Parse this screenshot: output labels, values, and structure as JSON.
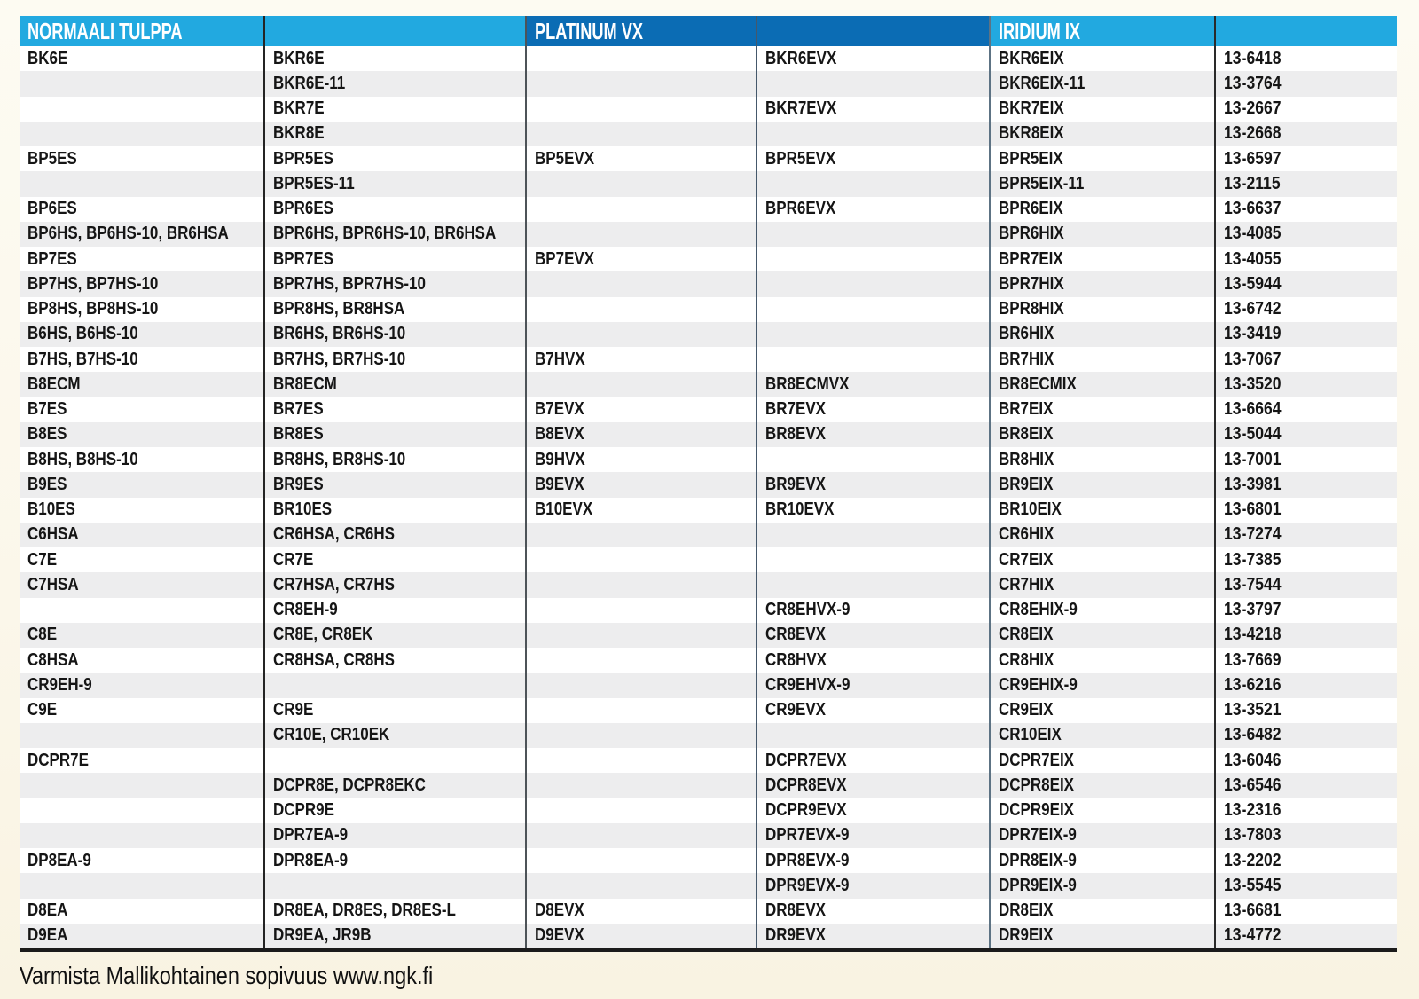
{
  "header": {
    "normaali_label": "NORMAALI TULPPA",
    "platinum_label": "PLATINUM VX",
    "iridium_label": "IRIDIUM IX"
  },
  "footer": {
    "note": "Varmista Mallikohtainen sopivuus www.ngk.fi"
  },
  "colors": {
    "light_blue": "#22A9E0",
    "dark_blue": "#0B6CB4",
    "stripe_gray": "#EDEDEE",
    "page_bg": "#FBF7EA",
    "text": "#151515"
  },
  "table": {
    "columns": [
      "normaali-tulppa-1",
      "normaali-tulppa-2",
      "platinum-vx-1",
      "platinum-vx-2",
      "iridium-ix",
      "part-number"
    ],
    "rows": [
      [
        "BK6E",
        "BKR6E",
        "",
        "BKR6EVX",
        "BKR6EIX",
        "13-6418"
      ],
      [
        "",
        "BKR6E-11",
        "",
        "",
        "BKR6EIX-11",
        "13-3764"
      ],
      [
        "",
        "BKR7E",
        "",
        "BKR7EVX",
        "BKR7EIX",
        "13-2667"
      ],
      [
        "",
        "BKR8E",
        "",
        "",
        "BKR8EIX",
        "13-2668"
      ],
      [
        "BP5ES",
        "BPR5ES",
        "BP5EVX",
        "BPR5EVX",
        "BPR5EIX",
        "13-6597"
      ],
      [
        "",
        "BPR5ES-11",
        "",
        "",
        "BPR5EIX-11",
        "13-2115"
      ],
      [
        "BP6ES",
        "BPR6ES",
        "",
        "BPR6EVX",
        "BPR6EIX",
        "13-6637"
      ],
      [
        "BP6HS, BP6HS-10, BR6HSA",
        "BPR6HS, BPR6HS-10, BR6HSA",
        "",
        "",
        "BPR6HIX",
        "13-4085"
      ],
      [
        "BP7ES",
        "BPR7ES",
        "BP7EVX",
        "",
        "BPR7EIX",
        "13-4055"
      ],
      [
        "BP7HS, BP7HS-10",
        "BPR7HS, BPR7HS-10",
        "",
        "",
        "BPR7HIX",
        "13-5944"
      ],
      [
        "BP8HS, BP8HS-10",
        "BPR8HS, BR8HSA",
        "",
        "",
        "BPR8HIX",
        "13-6742"
      ],
      [
        "B6HS, B6HS-10",
        "BR6HS, BR6HS-10",
        "",
        "",
        "BR6HIX",
        "13-3419"
      ],
      [
        "B7HS, B7HS-10",
        "BR7HS, BR7HS-10",
        "B7HVX",
        "",
        "BR7HIX",
        "13-7067"
      ],
      [
        "B8ECM",
        "BR8ECM",
        "",
        "BR8ECMVX",
        "BR8ECMIX",
        "13-3520"
      ],
      [
        "B7ES",
        "BR7ES",
        "B7EVX",
        "BR7EVX",
        "BR7EIX",
        "13-6664"
      ],
      [
        "B8ES",
        "BR8ES",
        "B8EVX",
        "BR8EVX",
        "BR8EIX",
        "13-5044"
      ],
      [
        "B8HS, B8HS-10",
        "BR8HS, BR8HS-10",
        "B9HVX",
        "",
        "BR8HIX",
        "13-7001"
      ],
      [
        "B9ES",
        "BR9ES",
        "B9EVX",
        "BR9EVX",
        "BR9EIX",
        "13-3981"
      ],
      [
        "B10ES",
        "BR10ES",
        "B10EVX",
        "BR10EVX",
        "BR10EIX",
        "13-6801"
      ],
      [
        "C6HSA",
        "CR6HSA, CR6HS",
        "",
        "",
        "CR6HIX",
        "13-7274"
      ],
      [
        "C7E",
        "CR7E",
        "",
        "",
        "CR7EIX",
        "13-7385"
      ],
      [
        "C7HSA",
        "CR7HSA, CR7HS",
        "",
        "",
        "CR7HIX",
        "13-7544"
      ],
      [
        "",
        "CR8EH-9",
        "",
        "CR8EHVX-9",
        "CR8EHIX-9",
        "13-3797"
      ],
      [
        "C8E",
        "CR8E, CR8EK",
        "",
        "CR8EVX",
        "CR8EIX",
        "13-4218"
      ],
      [
        "C8HSA",
        "CR8HSA, CR8HS",
        "",
        "CR8HVX",
        "CR8HIX",
        "13-7669"
      ],
      [
        "CR9EH-9",
        "",
        "",
        "CR9EHVX-9",
        "CR9EHIX-9",
        "13-6216"
      ],
      [
        "C9E",
        "CR9E",
        "",
        "CR9EVX",
        "CR9EIX",
        "13-3521"
      ],
      [
        "",
        "CR10E, CR10EK",
        "",
        "",
        "CR10EIX",
        "13-6482"
      ],
      [
        "DCPR7E",
        "",
        "",
        "DCPR7EVX",
        "DCPR7EIX",
        "13-6046"
      ],
      [
        "",
        "DCPR8E, DCPR8EKC",
        "",
        "DCPR8EVX",
        "DCPR8EIX",
        "13-6546"
      ],
      [
        "",
        "DCPR9E",
        "",
        "DCPR9EVX",
        "DCPR9EIX",
        "13-2316"
      ],
      [
        "",
        "DPR7EA-9",
        "",
        "DPR7EVX-9",
        "DPR7EIX-9",
        "13-7803"
      ],
      [
        "DP8EA-9",
        "DPR8EA-9",
        "",
        "DPR8EVX-9",
        "DPR8EIX-9",
        "13-2202"
      ],
      [
        "",
        "",
        "",
        "DPR9EVX-9",
        "DPR9EIX-9",
        "13-5545"
      ],
      [
        "D8EA",
        "DR8EA, DR8ES, DR8ES-L",
        "D8EVX",
        "DR8EVX",
        "DR8EIX",
        "13-6681"
      ],
      [
        "D9EA",
        "DR9EA, JR9B",
        "D9EVX",
        "DR9EVX",
        "DR9EIX",
        "13-4772"
      ]
    ]
  }
}
